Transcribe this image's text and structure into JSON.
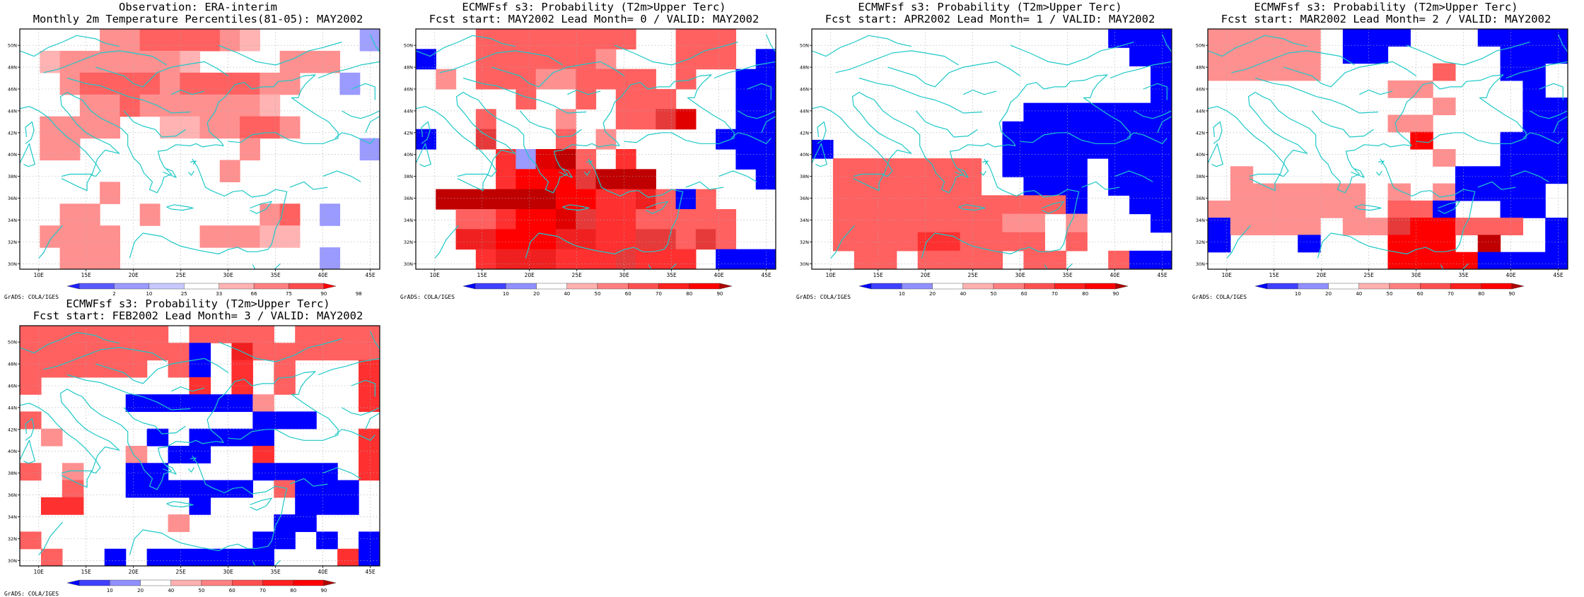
{
  "panels": [
    {
      "id": "obs",
      "title1": "Observation: ERA-interim",
      "title2": "Monthly 2m Temperature Percentiles(81-05): MAY2002",
      "credit": "GrADS: COLA/IGES",
      "legend_ticks": [
        "2",
        "10",
        "25",
        "33",
        "66",
        "75",
        "90",
        "98"
      ],
      "legend_colors": [
        "#1d1dff",
        "#5a5aff",
        "#9a9aff",
        "#c8c8ff",
        "#ffffff",
        "#ffb3b3",
        "#ff8080",
        "#ff4d4d",
        "#ff0000"
      ],
      "grid": [
        "....22333321.....C",
        ".12222221....222..",
        "..233332333322..A.",
        "...2232222221.....",
        ".2222..1122332....",
        ".22........2.....A",
        "..........2.......",
        "....2.............",
        "..22..2.....23.A..",
        ".2222....22211....",
        "..222..........A.."
      ]
    },
    {
      "id": "lead0",
      "title1": "ECMWFsf s3: Probability (T2m>Upper Terc)",
      "title2": "Fcst start: MAY2002   Lead Month= 0 / VALID: MAY2002",
      "credit": "GrADS: COLA/IGES",
      "legend_ticks": [
        "10",
        "20",
        "40",
        "50",
        "60",
        "70",
        "80",
        "90"
      ],
      "legend_colors": [
        "#0000ff",
        "#4040ff",
        "#9090ff",
        "#ffffff",
        "#ffb0b0",
        "#ff8080",
        "#ff5050",
        "#ff2020",
        "#ff0000",
        "#b00000"
      ],
      "grid": [
        "...33333333..333..",
        "B..3333332...333.B",
        ".2.333223333.3..BB",
        ".....3..3.333...BB",
        "...3...2..3347..BB",
        "B..4...3.2.....BBB",
        "....5A793.5.....BB",
        "....58884999.....B",
        ".999999885563B3...",
        "..33588745533333..",
        "..66888665544343..",
        "...56665554555.BBB"
      ]
    },
    {
      "id": "lead1",
      "title1": "ECMWFsf s3: Probability (T2m>Upper Terc)",
      "title2": "Fcst start: APR2002   Lead Month= 1 / VALID: MAY2002",
      "credit": "GrADS: COLA/IGES",
      "legend_ticks": [
        "10",
        "20",
        "40",
        "50",
        "60",
        "70",
        "80",
        "90"
      ],
      "legend_colors": [
        "#0000ff",
        "#4040ff",
        "#9090ff",
        "#ffffff",
        "#ffb0b0",
        "#ff8080",
        "#ff5050",
        "#ff2020",
        "#ff0000",
        "#b00000"
      ],
      "grid": [
        "..............BBB",
        "...............BB",
        "................B",
        "................B",
        "..........BBBBBBB",
        ".........BBBBBBBB",
        "B........BBBBBBBB",
        ".3333333.BBBB.BBB",
        ".3333333..BBB.BBB",
        ".33333333333B..BB",
        ".3333333322.2...B",
        ".3333553333.3....",
        "..33.3333.33..3BB"
      ]
    },
    {
      "id": "lead2",
      "title1": "ECMWFsf s3: Probability (T2m>Upper Terc)",
      "title2": "Fcst start: MAR2002   Lead Month= 2 / VALID: MAY2002",
      "credit": "GrADS: COLA/IGES",
      "legend_ticks": [
        "10",
        "20",
        "40",
        "50",
        "60",
        "70",
        "80",
        "90"
      ],
      "legend_colors": [
        "#0000ff",
        "#4040ff",
        "#9090ff",
        "#ffffff",
        "#ffb0b0",
        "#ff8080",
        "#ff5050",
        "#ff2020",
        "#ff0000",
        "#b00000"
      ],
      "grid": [
        "22222.BBB...BBBB",
        "22222.BB.....BBB",
        "22222.....3..BB.",
        "........22....B.",
        "..........2...BB",
        "........22....BB",
        ".........8...BBB",
        "..........2..BBB",
        ".2.........BBBBB",
        ".222222.2.2BBBB.",
        "2222222.33B..BB.",
        "B2222.22488333.B",
        "B...B...888.9..B",
        "........8888BBBB"
      ]
    },
    {
      "id": "lead3",
      "title1": "ECMWFsf s3: Probability (T2m>Upper Terc)",
      "title2": "Fcst start: FEB2002   Lead Month= 3 / VALID: MAY2002",
      "credit": "GrADS: COLA/IGES",
      "legend_ticks": [
        "10",
        "20",
        "40",
        "50",
        "60",
        "70",
        "80",
        "90"
      ],
      "legend_colors": [
        "#0000ff",
        "#4040ff",
        "#9090ff",
        "#ffffff",
        "#ffb0b0",
        "#ff8080",
        "#ff5050",
        "#ff2020",
        "#ff0000",
        "#b00000"
      ],
      "grid": [
        "3333333.3333.3333",
        "33333333B.6333333",
        "333333.3B.5.3...5",
        "3.......5.5.3...5",
        ".....BBBBBB2....5",
        "3..........BBB...",
        ".2....B.BBBB....5",
        ".....2.BB..5....5",
        "3.2..BB....BBBB.5",
        "..3..BBBBBB.3BBB.",
        ".55.....B....BBB.",
        ".......2....BB...",
        "3..........BB.B.B",
        ".3..B.BBBBBB...5B"
      ]
    }
  ],
  "axes": {
    "x_labels": [
      "10E",
      "15E",
      "20E",
      "25E",
      "30E",
      "35E",
      "40E",
      "45E"
    ],
    "x_values": [
      10,
      15,
      20,
      25,
      30,
      35,
      40,
      45
    ],
    "x_range": [
      8,
      46
    ],
    "y_labels": [
      "30N",
      "32N",
      "34N",
      "36N",
      "38N",
      "40N",
      "42N",
      "44N",
      "46N",
      "48N",
      "50N"
    ],
    "y_values": [
      30,
      32,
      34,
      36,
      38,
      40,
      42,
      44,
      46,
      48,
      50
    ],
    "y_range": [
      29.5,
      51.5
    ]
  },
  "palette_codes": {
    "A": "#9a9aff",
    "B": "#0000ff",
    "C": "#a0a0ff",
    "1": "#ffb3b3",
    "2": "#ff9090",
    "3": "#ff6060",
    "4": "#e63a3a",
    "5": "#ff3030",
    "6": "#f02020",
    "7": "#e00000",
    "8": "#ff0000",
    "9": "#c00000"
  },
  "coast_color": "#1ec8c8"
}
